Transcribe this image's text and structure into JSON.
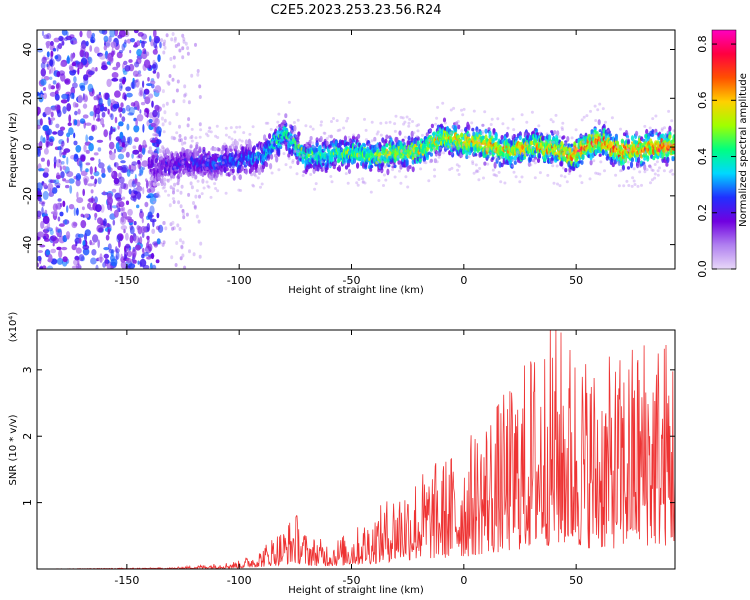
{
  "title": "C2E5.2023.253.23.56.R24",
  "chart_data": [
    {
      "type": "heatmap",
      "panel": "top",
      "xlabel": "Height of straight line (km)",
      "ylabel": "Frequency (Hz)",
      "xlim": [
        -190,
        94
      ],
      "ylim": [
        -50,
        48
      ],
      "xticks": [
        -150,
        -100,
        -50,
        0,
        50
      ],
      "yticks": [
        -40,
        -20,
        0,
        20,
        40
      ],
      "colorbar": {
        "label": "Normalized spectral amplitude",
        "range": [
          0.0,
          0.85
        ],
        "ticks": [
          0.0,
          0.2,
          0.4,
          0.6,
          0.8
        ],
        "colormap": [
          "#e8d8f8",
          "#b080f0",
          "#7000e0",
          "#2030ff",
          "#00d8ff",
          "#00ff80",
          "#a0ff00",
          "#ffd000",
          "#ff5000",
          "#ff0040",
          "#ff00c0"
        ]
      },
      "trace": {
        "x": [
          -190,
          -135,
          -120,
          -100,
          -90,
          -80,
          -70,
          -60,
          -50,
          -40,
          -30,
          -20,
          -10,
          0,
          10,
          20,
          30,
          40,
          50,
          60,
          70,
          80,
          94
        ],
        "y": [
          -8,
          -8,
          -6,
          -6,
          -4,
          6,
          -4,
          -3,
          -2,
          -4,
          -2,
          -2,
          4,
          2,
          1,
          -2,
          1,
          -1,
          -3,
          3,
          -2,
          -1,
          1
        ],
        "amplitude": [
          0.15,
          0.2,
          0.25,
          0.3,
          0.35,
          0.45,
          0.45,
          0.45,
          0.5,
          0.5,
          0.55,
          0.55,
          0.6,
          0.6,
          0.65,
          0.6,
          0.6,
          0.65,
          0.7,
          0.7,
          0.7,
          0.7,
          0.7
        ]
      }
    },
    {
      "type": "line",
      "panel": "bottom",
      "xlabel": "Height of straight line (km)",
      "ylabel": "SNR (10 * v/v)",
      "multiplier": "(x10⁴)",
      "xlim": [
        -190,
        94
      ],
      "ylim": [
        0,
        3.6
      ],
      "xticks": [
        -150,
        -100,
        -50,
        0,
        50
      ],
      "yticks": [
        1,
        2,
        3
      ],
      "color": "#ee3333",
      "envelope": {
        "x": [
          -190,
          -130,
          -110,
          -100,
          -90,
          -85,
          -80,
          -75,
          -70,
          -60,
          -50,
          -40,
          -30,
          -20,
          -10,
          0,
          10,
          20,
          30,
          40,
          50,
          60,
          70,
          80,
          94
        ],
        "y": [
          0.0,
          0.02,
          0.08,
          0.12,
          0.3,
          0.5,
          0.6,
          0.85,
          0.5,
          0.4,
          0.55,
          0.8,
          1.2,
          1.4,
          1.6,
          1.8,
          2.3,
          2.6,
          3.2,
          3.6,
          3.3,
          3.0,
          3.1,
          3.5,
          3.4
        ]
      }
    }
  ]
}
